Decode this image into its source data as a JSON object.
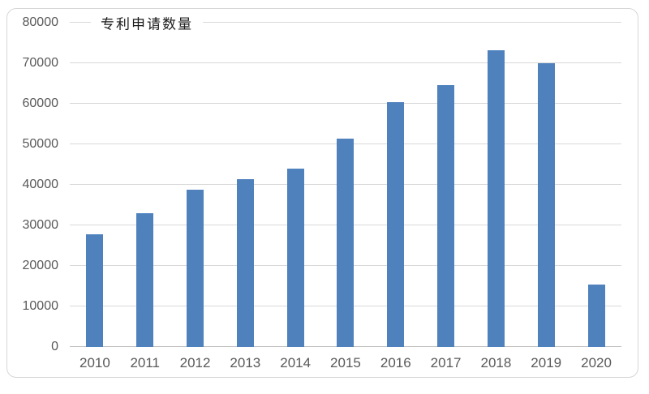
{
  "chart_data": {
    "type": "bar",
    "title": "专利申请数量",
    "categories": [
      "2010",
      "2011",
      "2012",
      "2013",
      "2014",
      "2015",
      "2016",
      "2017",
      "2018",
      "2019",
      "2020"
    ],
    "values": [
      27800,
      33000,
      38800,
      41500,
      44000,
      51400,
      60400,
      64700,
      73300,
      70000,
      15500
    ],
    "xlabel": "",
    "ylabel": "",
    "ylim": [
      0,
      80000
    ],
    "ytick_step": 10000,
    "ytick_labels": [
      "0",
      "10000",
      "20000",
      "30000",
      "40000",
      "50000",
      "60000",
      "70000",
      "80000"
    ],
    "grid": true,
    "legend_position": "top-left",
    "colors": {
      "bar": "#4f81bd",
      "gridline": "#d9d9d9",
      "axis_line": "#bfbfbf",
      "tick_label": "#595959",
      "title_text": "#1a1a1a",
      "card_border": "#d6d6d6",
      "background": "#ffffff"
    }
  }
}
